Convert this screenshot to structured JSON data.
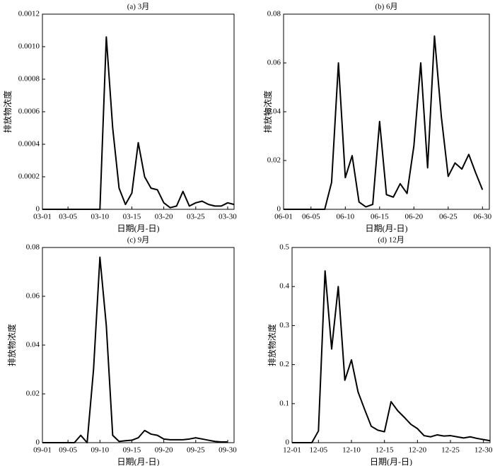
{
  "chart_data": [
    {
      "type": "line",
      "title": "(a) 3月",
      "xlabel": "日期(月-日)",
      "ylabel": "排放物浓度",
      "color": "#000000",
      "x": [
        1,
        2,
        3,
        4,
        5,
        6,
        7,
        8,
        9,
        10,
        11,
        12,
        13,
        14,
        15,
        16,
        17,
        18,
        19,
        20,
        21,
        22,
        23,
        24,
        25,
        26,
        27,
        28,
        29,
        30,
        31
      ],
      "values": [
        0,
        0,
        0,
        0,
        0,
        0,
        0,
        0,
        0,
        0,
        0.00106,
        0.0005,
        0.00013,
        3e-05,
        0.0001,
        0.00041,
        0.0002,
        0.00013,
        0.00012,
        4e-05,
        1e-05,
        2e-05,
        0.00011,
        2e-05,
        4e-05,
        5e-05,
        3e-05,
        2e-05,
        2e-05,
        4e-05,
        3e-05
      ],
      "xlim": [
        1,
        31
      ],
      "xticks": [
        {
          "value": 1,
          "label": "03-01"
        },
        {
          "value": 5,
          "label": "03-05"
        },
        {
          "value": 10,
          "label": "03-10"
        },
        {
          "value": 15,
          "label": "03-15"
        },
        {
          "value": 20,
          "label": "03-20"
        },
        {
          "value": 25,
          "label": "03-25"
        },
        {
          "value": 30,
          "label": "03-30"
        }
      ],
      "ylim": [
        0,
        0.0012
      ],
      "yticks": [
        0,
        0.0002,
        0.0004,
        0.0006,
        0.0008,
        {
          "value": 0.001,
          "label": "0.0010"
        },
        0.0012
      ]
    },
    {
      "type": "line",
      "title": "(b) 6月",
      "xlabel": "日期(月-日)",
      "ylabel": "排放物浓度",
      "color": "#000000",
      "x": [
        1,
        2,
        3,
        4,
        5,
        6,
        7,
        8,
        9,
        10,
        11,
        12,
        13,
        14,
        15,
        16,
        17,
        18,
        19,
        20,
        21,
        22,
        23,
        24,
        25,
        26,
        27,
        28,
        29,
        30
      ],
      "values": [
        0,
        0,
        0,
        0,
        0,
        0,
        0,
        0.011,
        0.06,
        0.013,
        0.022,
        0.003,
        0.001,
        0.002,
        0.036,
        0.006,
        0.005,
        0.0105,
        0.0065,
        0.026,
        0.06,
        0.017,
        0.071,
        0.038,
        0.0135,
        0.019,
        0.0165,
        0.0225,
        0.015,
        0.008
      ],
      "xlim": [
        1,
        31
      ],
      "xticks": [
        {
          "value": 1,
          "label": "06-01"
        },
        {
          "value": 5,
          "label": "06-05"
        },
        {
          "value": 10,
          "label": "06-10"
        },
        {
          "value": 15,
          "label": "06-15"
        },
        {
          "value": 20,
          "label": "06-20"
        },
        {
          "value": 25,
          "label": "06-25"
        },
        {
          "value": 30,
          "label": "06-30"
        }
      ],
      "ylim": [
        0,
        0.08
      ],
      "yticks": [
        0,
        0.02,
        0.04,
        0.06,
        0.08
      ]
    },
    {
      "type": "line",
      "title": "(c) 9月",
      "xlabel": "日期(月-日)",
      "ylabel": "排放物浓度",
      "color": "#000000",
      "x": [
        1,
        2,
        3,
        4,
        5,
        6,
        7,
        8,
        9,
        10,
        11,
        12,
        13,
        14,
        15,
        16,
        17,
        18,
        19,
        20,
        21,
        22,
        23,
        24,
        25,
        26,
        27,
        28,
        29,
        30
      ],
      "values": [
        0,
        0,
        0,
        0,
        0,
        0,
        0.003,
        0,
        0.03,
        0.076,
        0.048,
        0.003,
        0.0005,
        0.0008,
        0.001,
        0.002,
        0.005,
        0.0035,
        0.003,
        0.0015,
        0.0012,
        0.0012,
        0.0012,
        0.0015,
        0.002,
        0.0015,
        0.001,
        0.0005,
        0.0003,
        0.0003
      ],
      "xlim": [
        1,
        31
      ],
      "xticks": [
        {
          "value": 1,
          "label": "09-01"
        },
        {
          "value": 5,
          "label": "09-05"
        },
        {
          "value": 10,
          "label": "09-10"
        },
        {
          "value": 15,
          "label": "09-15"
        },
        {
          "value": 20,
          "label": "09-20"
        },
        {
          "value": 25,
          "label": "09-25"
        },
        {
          "value": 30,
          "label": "09-30"
        }
      ],
      "ylim": [
        0,
        0.08
      ],
      "yticks": [
        0,
        0.02,
        0.04,
        0.06,
        0.08
      ]
    },
    {
      "type": "line",
      "title": "(d) 12月",
      "xlabel": "日期(月-日)",
      "ylabel": "排放物浓度",
      "color": "#000000",
      "x": [
        1,
        2,
        3,
        4,
        5,
        6,
        7,
        8,
        9,
        10,
        11,
        12,
        13,
        14,
        15,
        16,
        17,
        18,
        19,
        20,
        21,
        22,
        23,
        24,
        25,
        26,
        27,
        28,
        29,
        30,
        31
      ],
      "values": [
        0,
        0,
        0,
        0,
        0.03,
        0.44,
        0.24,
        0.4,
        0.16,
        0.212,
        0.13,
        0.085,
        0.042,
        0.032,
        0.028,
        0.105,
        0.082,
        0.065,
        0.047,
        0.036,
        0.018,
        0.015,
        0.02,
        0.017,
        0.018,
        0.015,
        0.012,
        0.015,
        0.011,
        0.008,
        0.005
      ],
      "xlim": [
        1,
        31
      ],
      "xticks": [
        {
          "value": 1,
          "label": "12-01"
        },
        {
          "value": 5,
          "label": "12-05"
        },
        {
          "value": 10,
          "label": "12-10"
        },
        {
          "value": 15,
          "label": "12-15"
        },
        {
          "value": 20,
          "label": "12-20"
        },
        {
          "value": 25,
          "label": "12-25"
        },
        {
          "value": 30,
          "label": "12-30"
        }
      ],
      "ylim": [
        0,
        0.5
      ],
      "yticks": [
        0,
        0.1,
        0.2,
        0.3,
        0.4,
        0.5
      ]
    }
  ]
}
